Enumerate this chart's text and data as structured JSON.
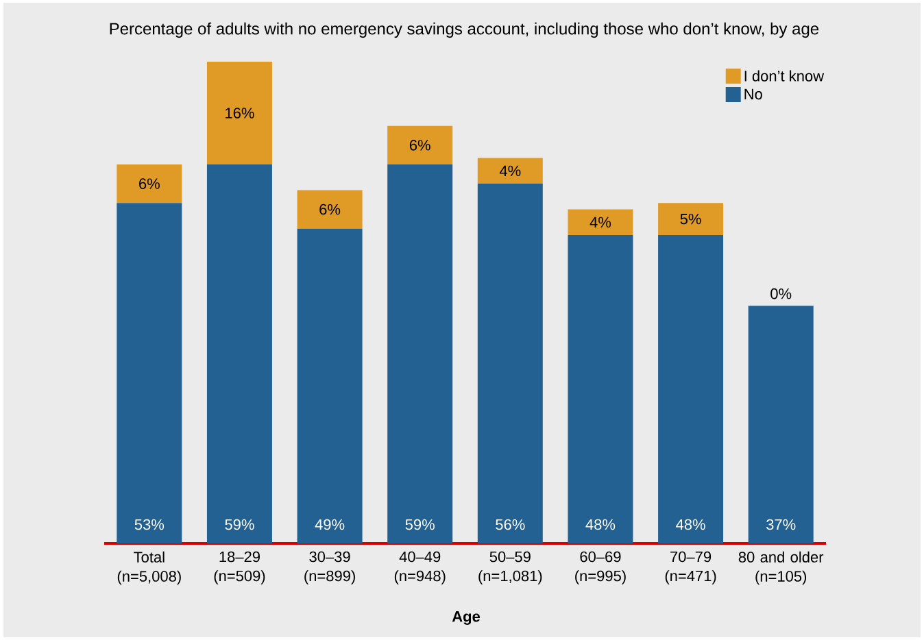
{
  "chart_data": {
    "type": "bar",
    "stacked": true,
    "title": "Percentage of adults with no emergency savings account, including those who don’t know, by age",
    "xlabel": "Age",
    "categories": [
      "Total (n=5,008)",
      "18–29 (n=509)",
      "30–39 (n=899)",
      "40–49 (n=948)",
      "50–59 (n=1,081)",
      "60–69 (n=995)",
      "70–79 (n=471)",
      "80 and older (n=105)"
    ],
    "series": [
      {
        "name": "No",
        "color": "#236192",
        "values": [
          53,
          59,
          49,
          59,
          56,
          48,
          48,
          37
        ],
        "value_labels": [
          "53%",
          "59%",
          "49%",
          "59%",
          "56%",
          "48%",
          "48%",
          "37%"
        ]
      },
      {
        "name": "I don’t know",
        "color": "#e09a26",
        "values": [
          6,
          16,
          6,
          6,
          4,
          4,
          5,
          0
        ],
        "value_labels": [
          "6%",
          "16%",
          "6%",
          "6%",
          "4%",
          "4%",
          "5%",
          "0%"
        ]
      }
    ],
    "legend": "top right"
  }
}
